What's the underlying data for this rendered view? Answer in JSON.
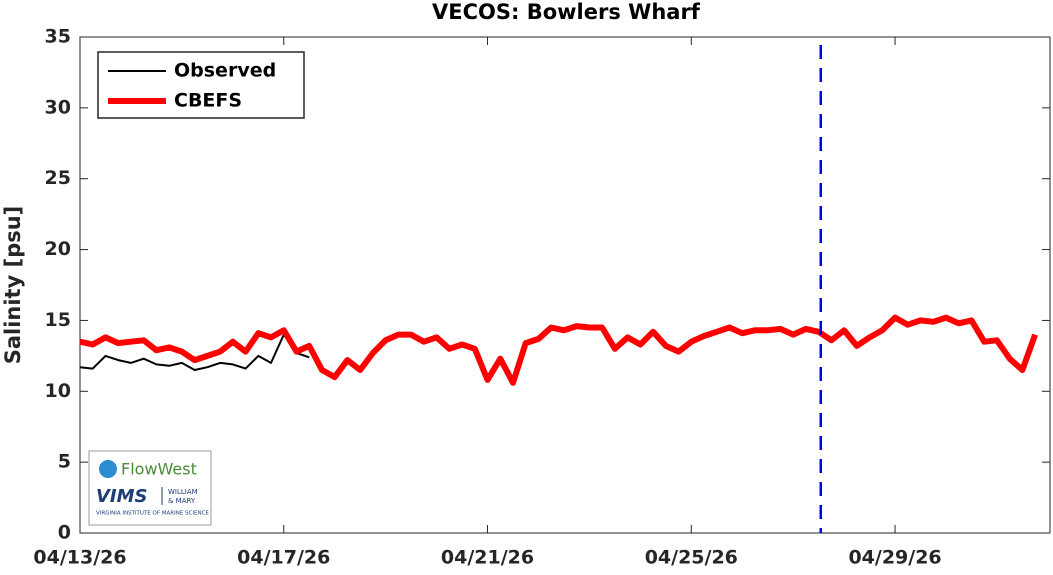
{
  "chart_data": {
    "type": "line",
    "title": "VECOS: Bowlers Wharf",
    "y_label": "Salinity [psu]",
    "x": [
      "2026-04-13T00:00",
      "2026-04-13T06:00",
      "2026-04-13T12:00",
      "2026-04-13T18:00",
      "2026-04-14T00:00",
      "2026-04-14T06:00",
      "2026-04-14T12:00",
      "2026-04-14T18:00",
      "2026-04-15T00:00",
      "2026-04-15T06:00",
      "2026-04-15T12:00",
      "2026-04-15T18:00",
      "2026-04-16T00:00",
      "2026-04-16T06:00",
      "2026-04-16T12:00",
      "2026-04-16T18:00",
      "2026-04-17T00:00",
      "2026-04-17T06:00",
      "2026-04-17T12:00",
      "2026-04-17T18:00",
      "2026-04-18T00:00",
      "2026-04-18T06:00",
      "2026-04-18T12:00",
      "2026-04-18T18:00",
      "2026-04-19T00:00",
      "2026-04-19T06:00",
      "2026-04-19T12:00",
      "2026-04-19T18:00",
      "2026-04-20T00:00",
      "2026-04-20T06:00",
      "2026-04-20T12:00",
      "2026-04-20T18:00",
      "2026-04-21T00:00",
      "2026-04-21T06:00",
      "2026-04-21T12:00",
      "2026-04-21T18:00",
      "2026-04-22T00:00",
      "2026-04-22T06:00",
      "2026-04-22T12:00",
      "2026-04-22T18:00",
      "2026-04-23T00:00",
      "2026-04-23T06:00",
      "2026-04-23T12:00",
      "2026-04-23T18:00",
      "2026-04-24T00:00",
      "2026-04-24T06:00",
      "2026-04-24T12:00",
      "2026-04-24T18:00",
      "2026-04-25T00:00",
      "2026-04-25T06:00",
      "2026-04-25T12:00",
      "2026-04-25T18:00",
      "2026-04-26T00:00",
      "2026-04-26T06:00",
      "2026-04-26T12:00",
      "2026-04-26T18:00",
      "2026-04-27T00:00",
      "2026-04-27T06:00",
      "2026-04-27T12:00",
      "2026-04-27T18:00",
      "2026-04-28T00:00",
      "2026-04-28T06:00",
      "2026-04-28T12:00",
      "2026-04-28T18:00",
      "2026-04-29T00:00",
      "2026-04-29T06:00",
      "2026-04-29T12:00",
      "2026-04-29T18:00",
      "2026-04-30T00:00",
      "2026-04-30T06:00",
      "2026-04-30T12:00",
      "2026-04-30T18:00",
      "2026-05-01T00:00",
      "2026-05-01T06:00",
      "2026-05-01T12:00",
      "2026-05-01T18:00"
    ],
    "series": [
      {
        "name": "Observed",
        "color": "#000000",
        "width": 2,
        "values": [
          11.7,
          11.6,
          12.5,
          12.2,
          12.0,
          12.3,
          11.9,
          11.8,
          12.0,
          11.5,
          11.7,
          12.0,
          11.9,
          11.6,
          12.5,
          12.0,
          14.0,
          12.7,
          12.4,
          null,
          null,
          null,
          null,
          null,
          null,
          null,
          null,
          null,
          null,
          null,
          null,
          null,
          null,
          null,
          null,
          null,
          null,
          null,
          null,
          null,
          null,
          null,
          null,
          null,
          null,
          null,
          null,
          null,
          null,
          null,
          null,
          null,
          null,
          null,
          null,
          null,
          null,
          null,
          null,
          null,
          null,
          null,
          null,
          null,
          null,
          null,
          null,
          null,
          null,
          null,
          null,
          null,
          null,
          null,
          null,
          null
        ]
      },
      {
        "name": "CBEFS",
        "color": "#ff0000",
        "width": 6,
        "values": [
          13.5,
          13.3,
          13.8,
          13.4,
          13.5,
          13.6,
          12.9,
          13.1,
          12.8,
          12.2,
          12.5,
          12.8,
          13.5,
          12.8,
          14.1,
          13.8,
          14.3,
          12.8,
          13.2,
          11.5,
          11.0,
          12.2,
          11.5,
          12.7,
          13.6,
          14.0,
          14.0,
          13.5,
          13.8,
          13.0,
          13.3,
          13.0,
          10.8,
          12.3,
          10.6,
          13.4,
          13.7,
          14.5,
          14.3,
          14.6,
          14.5,
          14.5,
          13.0,
          13.8,
          13.3,
          14.2,
          13.2,
          12.8,
          13.5,
          13.9,
          14.2,
          14.5,
          14.1,
          14.3,
          14.3,
          14.4,
          14.0,
          14.4,
          14.2,
          13.6,
          14.3,
          13.2,
          13.8,
          14.3,
          15.2,
          14.7,
          15.0,
          14.9,
          15.2,
          14.8,
          15.0,
          13.5,
          13.6,
          12.3,
          11.5,
          14.0
        ]
      }
    ],
    "xlim": [
      "2026-04-13T00:00",
      "2026-05-02T01:00"
    ],
    "xticks": [
      {
        "value": "2026-04-13T00:00",
        "label": "04/13/26"
      },
      {
        "value": "2026-04-17T00:00",
        "label": "04/17/26"
      },
      {
        "value": "2026-04-21T00:00",
        "label": "04/21/26"
      },
      {
        "value": "2026-04-25T00:00",
        "label": "04/25/26"
      },
      {
        "value": "2026-04-29T00:00",
        "label": "04/29/26"
      }
    ],
    "ylim": [
      0,
      35
    ],
    "yticks": [
      0,
      5,
      10,
      15,
      20,
      25,
      30,
      35
    ],
    "vline": {
      "x": "2026-04-27T13:00",
      "color": "#0000ee"
    },
    "legend": "upper left"
  },
  "logo": {
    "lines": [
      "FlowWest",
      "VIMS",
      "WILLIAM",
      "& MARY",
      "VIRGINIA INSTITUTE OF MARINE SCIENCE"
    ]
  }
}
